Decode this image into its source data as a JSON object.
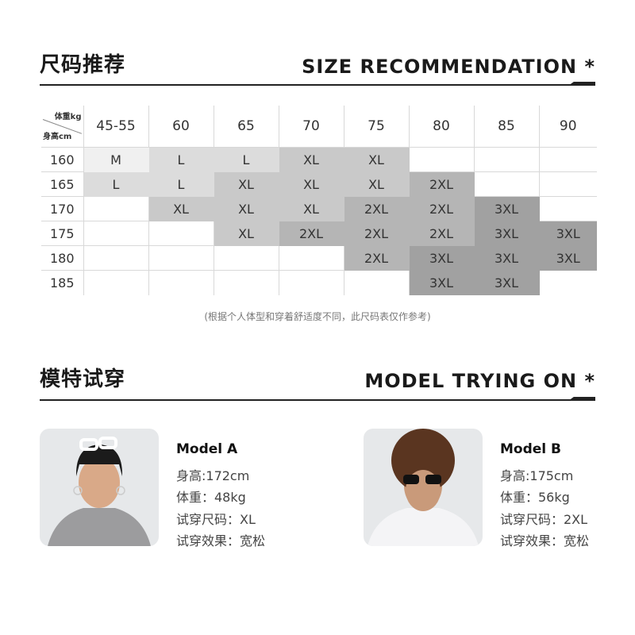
{
  "size_section": {
    "title_cn": "尺码推荐",
    "title_en": "SIZE RECOMMENDATION",
    "star": "*"
  },
  "table": {
    "corner_weight": "体重kg",
    "corner_height": "身高cm",
    "weights": [
      "45-55",
      "60",
      "65",
      "70",
      "75",
      "80",
      "85",
      "90"
    ],
    "rows": [
      {
        "height": "160",
        "sizes": [
          "M",
          "L",
          "L",
          "XL",
          "XL",
          "",
          "",
          ""
        ]
      },
      {
        "height": "165",
        "sizes": [
          "L",
          "L",
          "XL",
          "XL",
          "XL",
          "2XL",
          "",
          ""
        ]
      },
      {
        "height": "170",
        "sizes": [
          "",
          "XL",
          "XL",
          "XL",
          "2XL",
          "2XL",
          "3XL",
          ""
        ]
      },
      {
        "height": "175",
        "sizes": [
          "",
          "",
          "XL",
          "2XL",
          "2XL",
          "2XL",
          "3XL",
          "3XL"
        ]
      },
      {
        "height": "180",
        "sizes": [
          "",
          "",
          "",
          "",
          "2XL",
          "3XL",
          "3XL",
          "3XL"
        ]
      },
      {
        "height": "185",
        "sizes": [
          "",
          "",
          "",
          "",
          "",
          "3XL",
          "3XL",
          ""
        ]
      }
    ],
    "size_colors": {
      "M": "#f0f0f0",
      "L": "#dcdcdc",
      "XL": "#c9c9c9",
      "2XL": "#b5b5b5",
      "3XL": "#a1a1a1"
    }
  },
  "note": "(根据个人体型和穿着舒适度不同，此尺码表仅作参考)",
  "model_section": {
    "title_cn": "模特试穿",
    "title_en": "MODEL TRYING ON",
    "star": "*"
  },
  "models": [
    {
      "name": "Model A",
      "height": "身高:172cm",
      "weight": "体重：48kg",
      "size": "试穿尺码：XL",
      "fit": "试穿效果：宽松"
    },
    {
      "name": "Model B",
      "height": "身高:175cm",
      "weight": "体重：56kg",
      "size": "试穿尺码：2XL",
      "fit": "试穿效果：宽松"
    }
  ]
}
